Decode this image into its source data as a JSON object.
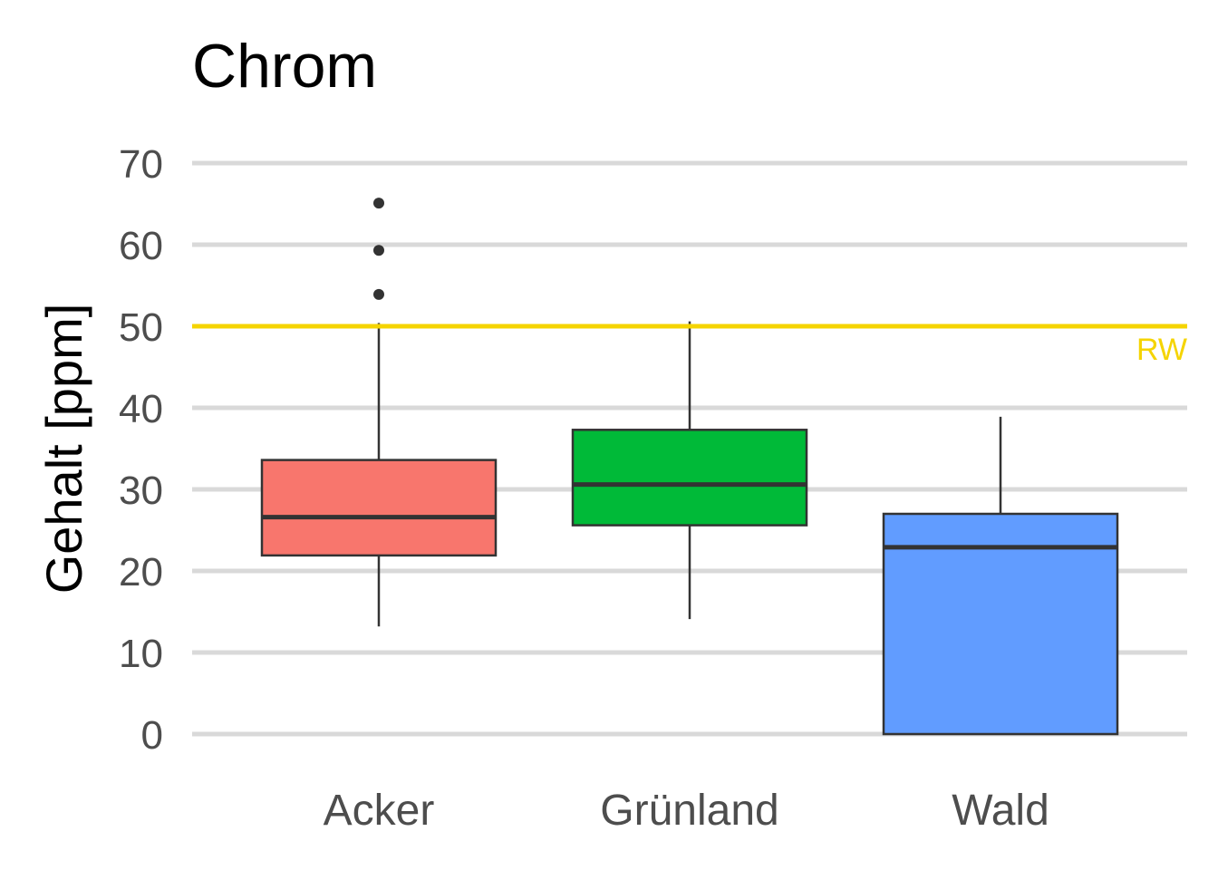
{
  "chart_data": {
    "type": "boxplot",
    "title": "Chrom",
    "xlabel": "",
    "ylabel": "Gehalt [ppm]",
    "ylim": [
      -3,
      72
    ],
    "yticks": [
      0,
      10,
      20,
      30,
      40,
      50,
      60,
      70
    ],
    "ytick_labels": [
      "0",
      "10",
      "20",
      "30",
      "40",
      "50",
      "60",
      "70"
    ],
    "grid": "horizontal",
    "categories": [
      "Acker",
      "Grünland",
      "Wald"
    ],
    "colors": [
      "#F8766D",
      "#00BA38",
      "#619CFF"
    ],
    "boxes": [
      {
        "category": "Acker",
        "whisker_low": 13.2,
        "q1": 21.9,
        "median": 26.6,
        "q3": 33.6,
        "whisker_high": 50.4,
        "outliers": [
          53.9,
          59.3,
          65.1
        ]
      },
      {
        "category": "Grünland",
        "whisker_low": 14.1,
        "q1": 25.6,
        "median": 30.6,
        "q3": 37.3,
        "whisker_high": 50.6,
        "outliers": []
      },
      {
        "category": "Wald",
        "whisker_low": 0.0,
        "q1": 0.0,
        "median": 22.9,
        "q3": 27.0,
        "whisker_high": 38.9,
        "outliers": []
      }
    ],
    "reference_line": {
      "value": 50,
      "label": "RW",
      "color": "#F5D400"
    }
  }
}
